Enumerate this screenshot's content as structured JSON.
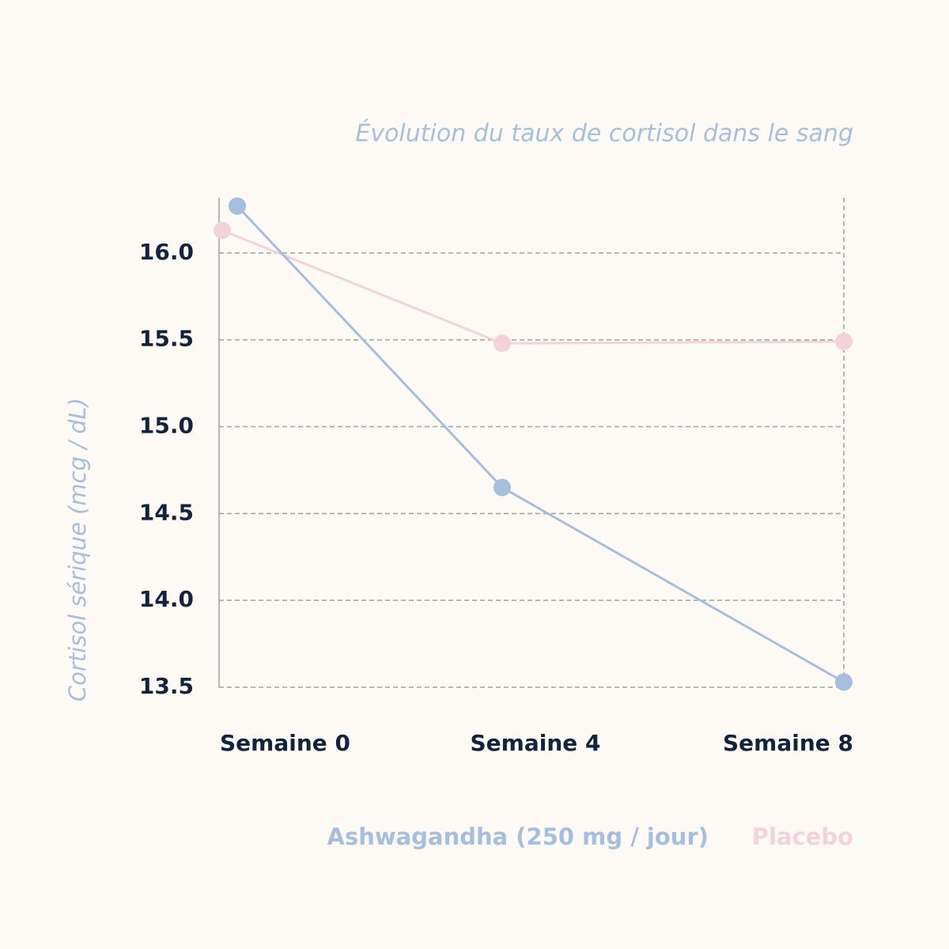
{
  "chart_data": {
    "type": "line",
    "title": "Évolution du taux de cortisol dans le sang",
    "y_label": "Cortisol sérique (mcg / dL)",
    "categories": [
      "Semaine 0",
      "Semaine 4",
      "Semaine 8"
    ],
    "series": [
      {
        "name": "Ashwagandha (250 mg / jour)",
        "color": "#a7bedd",
        "values": [
          16.27,
          14.65,
          13.53
        ]
      },
      {
        "name": "Placebo",
        "color": "#f2d3da",
        "values": [
          16.13,
          15.48,
          15.49
        ]
      }
    ],
    "ylim": [
      13.5,
      16.3
    ],
    "yticks": [
      {
        "value": 13.5,
        "label": "13.5"
      },
      {
        "value": 14,
        "label": "14.0"
      },
      {
        "value": 14.5,
        "label": "14.5"
      },
      {
        "value": 15,
        "label": "15.0"
      },
      {
        "value": 15.5,
        "label": "15.5"
      },
      {
        "value": 16,
        "label": "16.0"
      }
    ],
    "grid": true
  }
}
